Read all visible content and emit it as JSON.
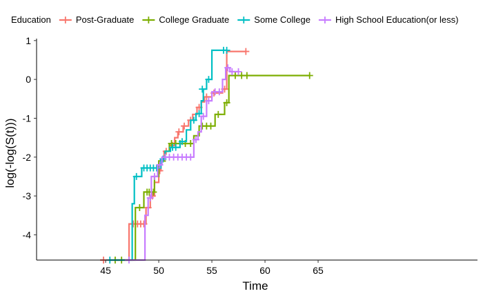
{
  "chart_data": {
    "type": "line",
    "title": "",
    "xlabel": "Time",
    "ylabel": "log(-log(S(t)))",
    "xlim": [
      38.5,
      80
    ],
    "ylim": [
      -4.65,
      1.05
    ],
    "x_ticks": [
      45,
      50,
      55,
      60,
      65
    ],
    "y_ticks": [
      1,
      0,
      -1,
      -2,
      -3,
      -4
    ],
    "grid": false,
    "legend": {
      "title": "Education",
      "placement": "top"
    },
    "series": [
      {
        "name": "Post-Graduate",
        "color": "#F8766D",
        "step": [
          [
            44.5,
            -4.65
          ],
          [
            47.2,
            -4.65
          ],
          [
            47.2,
            -3.72
          ],
          [
            48.8,
            -3.72
          ],
          [
            48.8,
            -3.3
          ],
          [
            49.2,
            -3.3
          ],
          [
            49.2,
            -3.0
          ],
          [
            49.6,
            -3.0
          ],
          [
            49.6,
            -2.65
          ],
          [
            50.0,
            -2.65
          ],
          [
            50.0,
            -2.35
          ],
          [
            50.2,
            -2.35
          ],
          [
            50.2,
            -2.1
          ],
          [
            50.5,
            -2.1
          ],
          [
            50.5,
            -1.85
          ],
          [
            51.0,
            -1.85
          ],
          [
            51.0,
            -1.7
          ],
          [
            51.5,
            -1.7
          ],
          [
            51.5,
            -1.5
          ],
          [
            51.8,
            -1.5
          ],
          [
            51.8,
            -1.35
          ],
          [
            52.3,
            -1.35
          ],
          [
            52.3,
            -1.2
          ],
          [
            52.8,
            -1.2
          ],
          [
            52.8,
            -1.05
          ],
          [
            53.2,
            -1.05
          ],
          [
            53.2,
            -0.9
          ],
          [
            53.6,
            -0.9
          ],
          [
            53.6,
            -0.72
          ],
          [
            54.0,
            -0.72
          ],
          [
            54.0,
            -0.58
          ],
          [
            54.3,
            -0.58
          ],
          [
            54.3,
            -0.45
          ],
          [
            55.0,
            -0.45
          ],
          [
            55.0,
            -0.35
          ],
          [
            56.0,
            -0.35
          ],
          [
            56.0,
            -0.25
          ],
          [
            56.4,
            -0.25
          ],
          [
            56.4,
            0.72
          ],
          [
            58.2,
            0.72
          ]
        ],
        "censored": [
          [
            44.8,
            -4.65
          ],
          [
            47.6,
            -3.72
          ],
          [
            48.0,
            -3.72
          ],
          [
            48.3,
            -3.72
          ],
          [
            48.6,
            -3.72
          ],
          [
            49.0,
            -3.3
          ],
          [
            49.4,
            -3.0
          ],
          [
            50.1,
            -2.35
          ],
          [
            50.7,
            -1.85
          ],
          [
            51.3,
            -1.7
          ],
          [
            51.9,
            -1.35
          ],
          [
            52.4,
            -1.2
          ],
          [
            53.0,
            -1.05
          ],
          [
            53.8,
            -0.72
          ],
          [
            54.5,
            -0.45
          ],
          [
            55.2,
            -0.35
          ],
          [
            56.2,
            -0.25
          ],
          [
            58.2,
            0.72
          ]
        ]
      },
      {
        "name": "College Graduate",
        "color": "#7CAE00",
        "step": [
          [
            45.8,
            -4.65
          ],
          [
            47.8,
            -4.65
          ],
          [
            47.8,
            -3.3
          ],
          [
            48.6,
            -3.3
          ],
          [
            48.6,
            -2.9
          ],
          [
            49.6,
            -2.9
          ],
          [
            49.6,
            -2.5
          ],
          [
            50.0,
            -2.5
          ],
          [
            50.0,
            -2.1
          ],
          [
            50.6,
            -2.1
          ],
          [
            50.6,
            -1.85
          ],
          [
            51.0,
            -1.85
          ],
          [
            51.0,
            -1.65
          ],
          [
            53.3,
            -1.65
          ],
          [
            53.3,
            -1.45
          ],
          [
            53.8,
            -1.45
          ],
          [
            53.8,
            -1.2
          ],
          [
            55.3,
            -1.2
          ],
          [
            55.3,
            -0.9
          ],
          [
            56.2,
            -0.9
          ],
          [
            56.2,
            -0.6
          ],
          [
            56.6,
            -0.6
          ],
          [
            56.6,
            0.1
          ],
          [
            64.2,
            0.1
          ]
        ],
        "censored": [
          [
            45.9,
            -4.65
          ],
          [
            46.5,
            -4.65
          ],
          [
            48.2,
            -3.3
          ],
          [
            48.9,
            -2.9
          ],
          [
            49.1,
            -2.9
          ],
          [
            49.3,
            -2.9
          ],
          [
            49.5,
            -2.9
          ],
          [
            50.3,
            -2.1
          ],
          [
            51.2,
            -1.65
          ],
          [
            51.6,
            -1.65
          ],
          [
            52.0,
            -1.65
          ],
          [
            52.5,
            -1.65
          ],
          [
            53.0,
            -1.65
          ],
          [
            54.1,
            -1.2
          ],
          [
            54.5,
            -1.2
          ],
          [
            54.9,
            -1.2
          ],
          [
            55.6,
            -0.9
          ],
          [
            56.4,
            -0.6
          ],
          [
            57.2,
            0.1
          ],
          [
            57.8,
            0.1
          ],
          [
            58.3,
            0.1
          ],
          [
            64.2,
            0.1
          ]
        ]
      },
      {
        "name": "Some College",
        "color": "#00BFC4",
        "step": [
          [
            45.4,
            -4.65
          ],
          [
            47.5,
            -4.65
          ],
          [
            47.5,
            -3.2
          ],
          [
            47.7,
            -3.2
          ],
          [
            47.7,
            -2.5
          ],
          [
            48.4,
            -2.5
          ],
          [
            48.4,
            -2.28
          ],
          [
            50.2,
            -2.28
          ],
          [
            50.2,
            -2.05
          ],
          [
            50.6,
            -2.05
          ],
          [
            50.6,
            -1.85
          ],
          [
            51.1,
            -1.85
          ],
          [
            51.1,
            -1.75
          ],
          [
            52.0,
            -1.75
          ],
          [
            52.0,
            -1.6
          ],
          [
            52.6,
            -1.6
          ],
          [
            52.6,
            -1.3
          ],
          [
            53.0,
            -1.3
          ],
          [
            53.0,
            -1.05
          ],
          [
            53.5,
            -1.05
          ],
          [
            53.5,
            -0.88
          ],
          [
            54.0,
            -0.88
          ],
          [
            54.0,
            -0.55
          ],
          [
            54.2,
            -0.55
          ],
          [
            54.2,
            -0.25
          ],
          [
            54.5,
            -0.25
          ],
          [
            54.5,
            0.0
          ],
          [
            55.0,
            0.0
          ],
          [
            55.0,
            0.75
          ],
          [
            56.4,
            0.75
          ]
        ],
        "censored": [
          [
            45.4,
            -4.65
          ],
          [
            47.9,
            -2.5
          ],
          [
            48.6,
            -2.28
          ],
          [
            48.9,
            -2.28
          ],
          [
            49.2,
            -2.28
          ],
          [
            49.5,
            -2.28
          ],
          [
            49.8,
            -2.28
          ],
          [
            50.4,
            -2.05
          ],
          [
            51.3,
            -1.75
          ],
          [
            51.6,
            -1.75
          ],
          [
            52.2,
            -1.6
          ],
          [
            53.3,
            -1.05
          ],
          [
            53.8,
            -0.88
          ],
          [
            54.1,
            -0.25
          ],
          [
            54.7,
            0.0
          ],
          [
            56.1,
            0.75
          ],
          [
            56.4,
            0.75
          ]
        ]
      },
      {
        "name": "High School Education(or less)",
        "color": "#C77CFF",
        "step": [
          [
            46.8,
            -4.65
          ],
          [
            48.7,
            -4.65
          ],
          [
            48.7,
            -3.5
          ],
          [
            49.0,
            -3.5
          ],
          [
            49.0,
            -3.05
          ],
          [
            49.3,
            -3.05
          ],
          [
            49.3,
            -2.5
          ],
          [
            49.9,
            -2.5
          ],
          [
            49.9,
            -2.2
          ],
          [
            50.3,
            -2.2
          ],
          [
            50.3,
            -2.0
          ],
          [
            53.3,
            -2.0
          ],
          [
            53.3,
            -1.55
          ],
          [
            53.7,
            -1.55
          ],
          [
            53.7,
            -1.35
          ],
          [
            54.0,
            -1.35
          ],
          [
            54.0,
            -0.95
          ],
          [
            54.5,
            -0.95
          ],
          [
            54.5,
            -0.55
          ],
          [
            55.0,
            -0.55
          ],
          [
            55.0,
            -0.32
          ],
          [
            56.0,
            -0.32
          ],
          [
            56.0,
            0.0
          ],
          [
            56.3,
            0.0
          ],
          [
            56.3,
            0.3
          ],
          [
            56.7,
            0.3
          ],
          [
            56.7,
            0.2
          ],
          [
            57.5,
            0.2
          ]
        ],
        "censored": [
          [
            47.2,
            -4.65
          ],
          [
            49.2,
            -3.05
          ],
          [
            49.6,
            -2.5
          ],
          [
            50.1,
            -2.2
          ],
          [
            50.6,
            -2.0
          ],
          [
            51.0,
            -2.0
          ],
          [
            51.4,
            -2.0
          ],
          [
            51.8,
            -2.0
          ],
          [
            52.2,
            -2.0
          ],
          [
            52.6,
            -2.0
          ],
          [
            53.0,
            -2.0
          ],
          [
            53.5,
            -1.55
          ],
          [
            54.2,
            -0.95
          ],
          [
            54.7,
            -0.55
          ],
          [
            55.3,
            -0.32
          ],
          [
            55.7,
            -0.32
          ],
          [
            56.5,
            0.3
          ],
          [
            56.9,
            0.2
          ],
          [
            57.5,
            0.2
          ]
        ]
      }
    ]
  }
}
